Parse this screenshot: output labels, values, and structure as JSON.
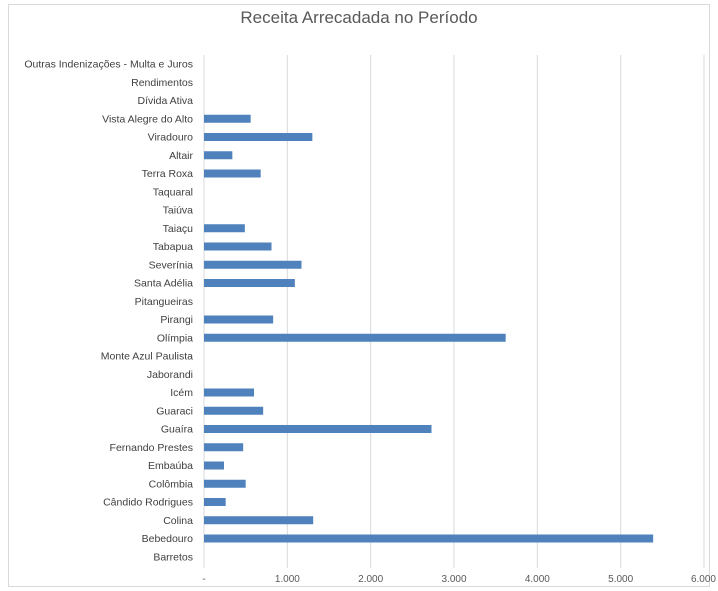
{
  "chart_data": {
    "type": "bar",
    "orientation": "horizontal",
    "title": "Receita Arrecadada no Período",
    "xlabel": "",
    "ylabel": "",
    "xlim": [
      0,
      6000
    ],
    "x_ticks": [
      0,
      1000,
      2000,
      3000,
      4000,
      5000,
      6000
    ],
    "x_tick_labels": [
      "-",
      "1.000",
      "2.000",
      "3.000",
      "4.000",
      "5.000",
      "6.000"
    ],
    "grid": true,
    "legend": "none",
    "bar_color": "#4f81bd",
    "categories": [
      "Outras Indenizações - Multa e Juros",
      "Rendimentos",
      "Dívida Ativa",
      "Vista Alegre do Alto",
      "Viradouro",
      "Altair",
      "Terra Roxa",
      "Taquaral",
      "Taiúva",
      "Taiaçu",
      "Tabapua",
      "Severínia",
      "Santa Adélia",
      "Pitangueiras",
      "Pirangi",
      "Olímpia",
      "Monte Azul Paulista",
      "Jaborandi",
      "Icém",
      "Guaraci",
      "Guaíra",
      "Fernando Prestes",
      "Embaúba",
      "Colômbia",
      "Cândido Rodrigues",
      "Colina",
      "Bebedouro",
      "Barretos"
    ],
    "values": [
      0,
      0,
      0,
      560,
      1300,
      340,
      680,
      0,
      0,
      490,
      810,
      1170,
      1090,
      0,
      830,
      3620,
      0,
      0,
      600,
      710,
      2730,
      470,
      240,
      500,
      260,
      1310,
      5390,
      0
    ]
  }
}
